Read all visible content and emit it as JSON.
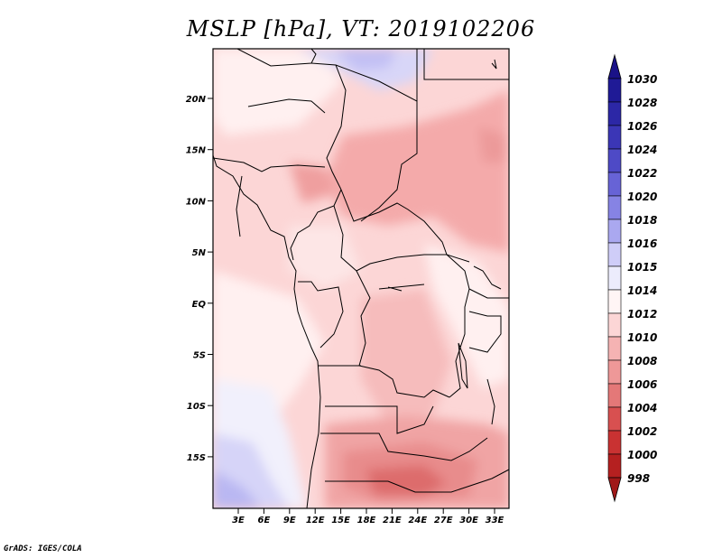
{
  "title": "MSLP [hPa], VT: 2019102206",
  "credit": "GrADS: IGES/COLA",
  "map": {
    "lat_labels": [
      "20N",
      "15N",
      "10N",
      "5N",
      "EQ",
      "5S",
      "10S",
      "15S"
    ],
    "lon_labels": [
      "3E",
      "6E",
      "9E",
      "12E",
      "15E",
      "18E",
      "21E",
      "24E",
      "27E",
      "30E",
      "33E"
    ]
  },
  "colorbar": {
    "levels": [
      "1030",
      "1028",
      "1026",
      "1024",
      "1022",
      "1020",
      "1018",
      "1016",
      "1015",
      "1014",
      "1012",
      "1010",
      "1008",
      "1006",
      "1004",
      "1002",
      "1000",
      "998"
    ],
    "colors": {
      "top_arrow": "#1a1288",
      "band_1028": "#1f1a96",
      "band_1026": "#2c27a6",
      "band_1024": "#3b36b6",
      "band_1022": "#4e4ac6",
      "band_1020": "#6763d6",
      "band_1018": "#8683e4",
      "band_1016": "#aaa8f0",
      "band_1015": "#cfcdf8",
      "band_1014": "#ececfc",
      "band_1012": "#fff5f5",
      "band_1010": "#fcd6d6",
      "band_1008": "#f5b3b3",
      "band_1006": "#ee9898",
      "band_1004": "#e47878",
      "band_1002": "#d85050",
      "band_1000": "#c93232",
      "band_998": "#b52020",
      "bottom_arrow": "#a01818"
    }
  }
}
